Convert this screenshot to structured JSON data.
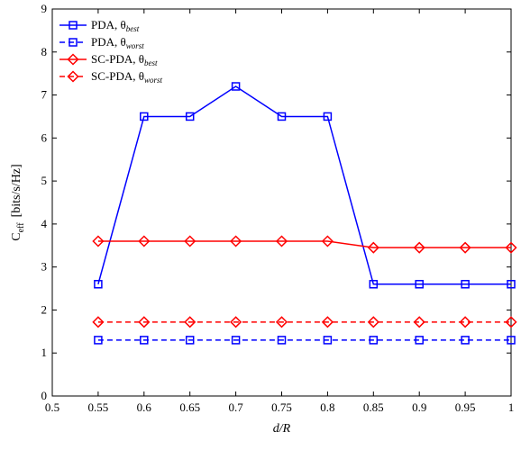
{
  "chart_data": {
    "type": "line",
    "title": "",
    "xlabel": "d/R",
    "ylabel": "C_eff [bits/s/Hz]",
    "ylabel_main": "C",
    "ylabel_sub": "eff",
    "ylabel_unit": "[bits/s/Hz]",
    "xlim": [
      0.5,
      1.0
    ],
    "ylim": [
      0,
      9
    ],
    "xticks": [
      "0.5",
      "0.55",
      "0.6",
      "0.65",
      "0.7",
      "0.75",
      "0.8",
      "0.85",
      "0.9",
      "0.95",
      "1"
    ],
    "yticks": [
      "0",
      "1",
      "2",
      "3",
      "4",
      "5",
      "6",
      "7",
      "8",
      "9"
    ],
    "grid": false,
    "legend_position": "top-left",
    "x": [
      0.55,
      0.6,
      0.65,
      0.7,
      0.75,
      0.8,
      0.85,
      0.9,
      0.95,
      1.0
    ],
    "series": [
      {
        "name": "PDA, θbest",
        "name_main": "PDA, θ",
        "name_sub": "best",
        "color": "#0000ff",
        "line_style": "solid",
        "marker": "square",
        "values": [
          2.6,
          6.5,
          6.5,
          7.2,
          6.5,
          6.5,
          2.6,
          2.6,
          2.6,
          2.6
        ]
      },
      {
        "name": "PDA, θworst",
        "name_main": "PDA, θ",
        "name_sub": "worst",
        "color": "#0000ff",
        "line_style": "dashed",
        "marker": "square",
        "values": [
          1.3,
          1.3,
          1.3,
          1.3,
          1.3,
          1.3,
          1.3,
          1.3,
          1.3,
          1.3
        ]
      },
      {
        "name": "SC-PDA, θbest",
        "name_main": "SC-PDA, θ",
        "name_sub": "best",
        "color": "#ff0000",
        "line_style": "solid",
        "marker": "diamond",
        "values": [
          3.6,
          3.6,
          3.6,
          3.6,
          3.6,
          3.6,
          3.45,
          3.45,
          3.45,
          3.45
        ]
      },
      {
        "name": "SC-PDA, θworst",
        "name_main": "SC-PDA, θ",
        "name_sub": "worst",
        "color": "#ff0000",
        "line_style": "dashed",
        "marker": "diamond",
        "values": [
          1.72,
          1.72,
          1.72,
          1.72,
          1.72,
          1.72,
          1.72,
          1.72,
          1.72,
          1.72
        ]
      }
    ]
  }
}
